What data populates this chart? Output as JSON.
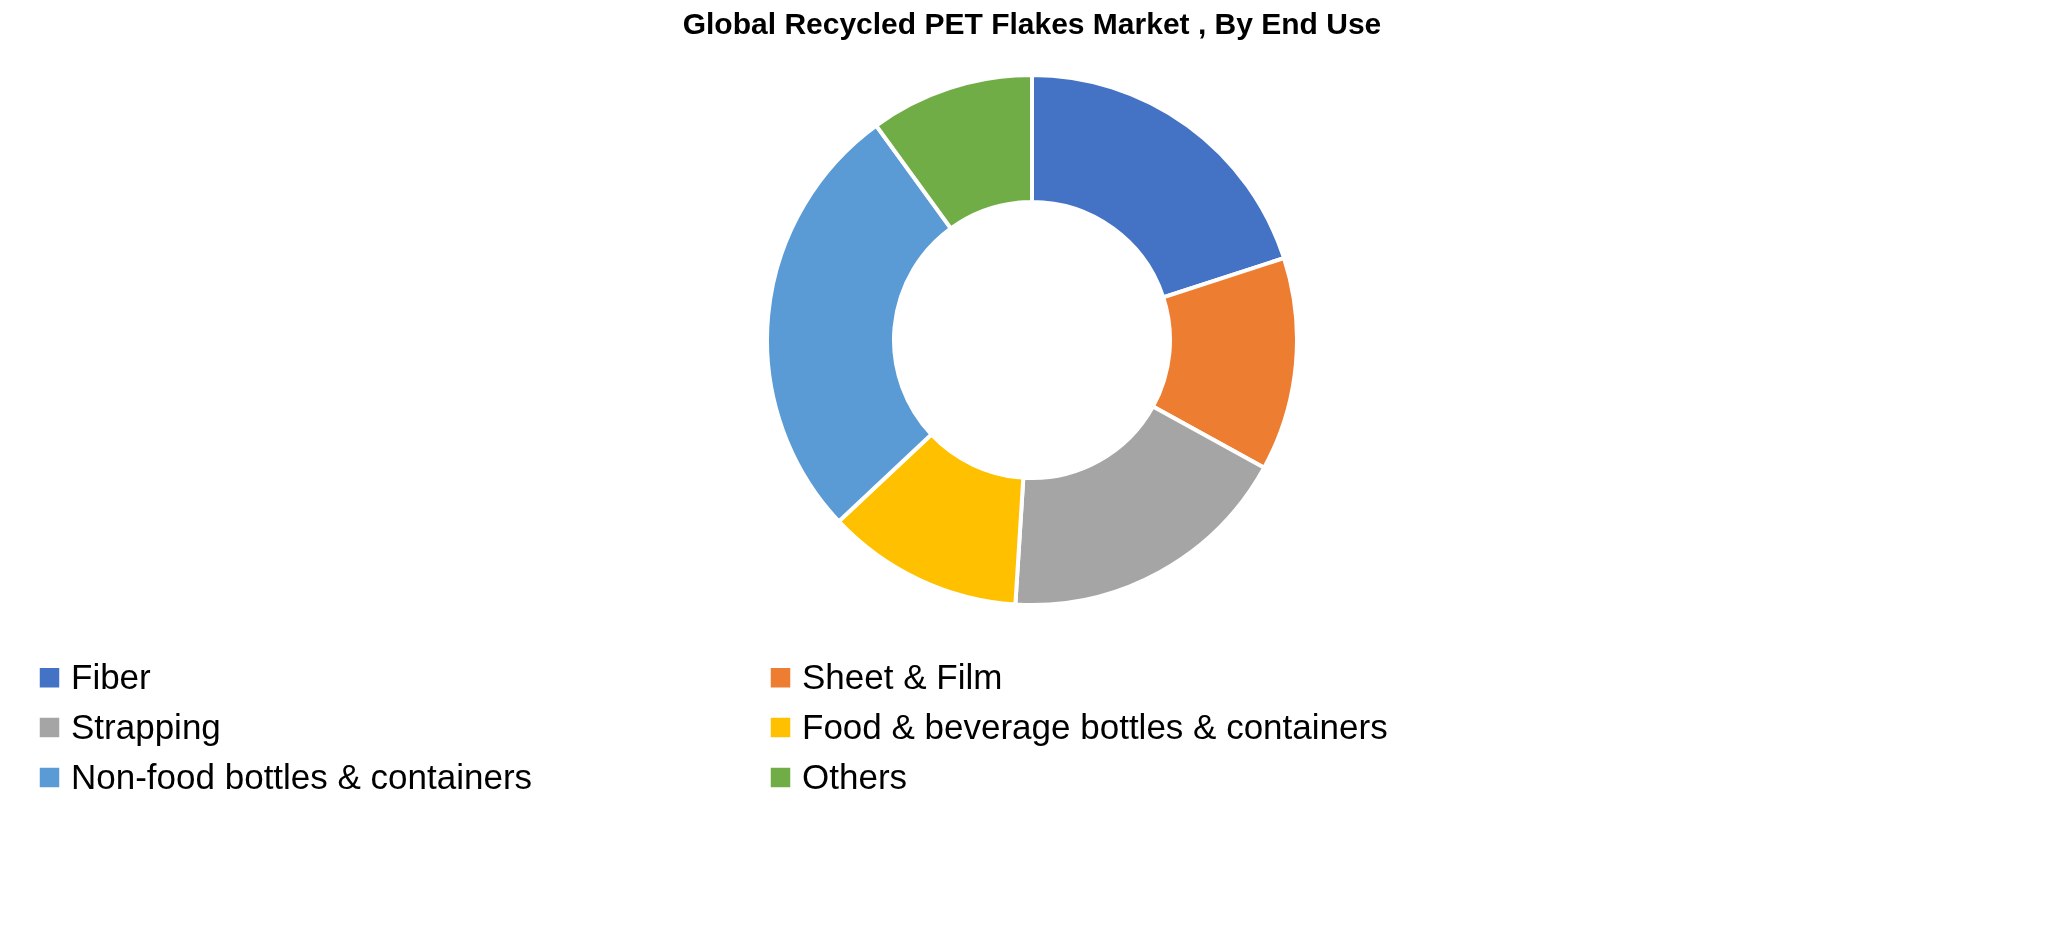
{
  "chart_data": {
    "type": "donut",
    "title": "Global Recycled PET Flakes Market , By End Use",
    "categories": [
      "Fiber",
      "Sheet & Film",
      "Strapping",
      "Food & beverage bottles & containers",
      "Non-food bottles & containers",
      "Others"
    ],
    "values": [
      20,
      13,
      18,
      12,
      27,
      10
    ],
    "colors": [
      "#4472c4",
      "#ed7d31",
      "#a5a5a5",
      "#ffc000",
      "#5b9bd5",
      "#70ad47"
    ],
    "legend": "bottom"
  }
}
